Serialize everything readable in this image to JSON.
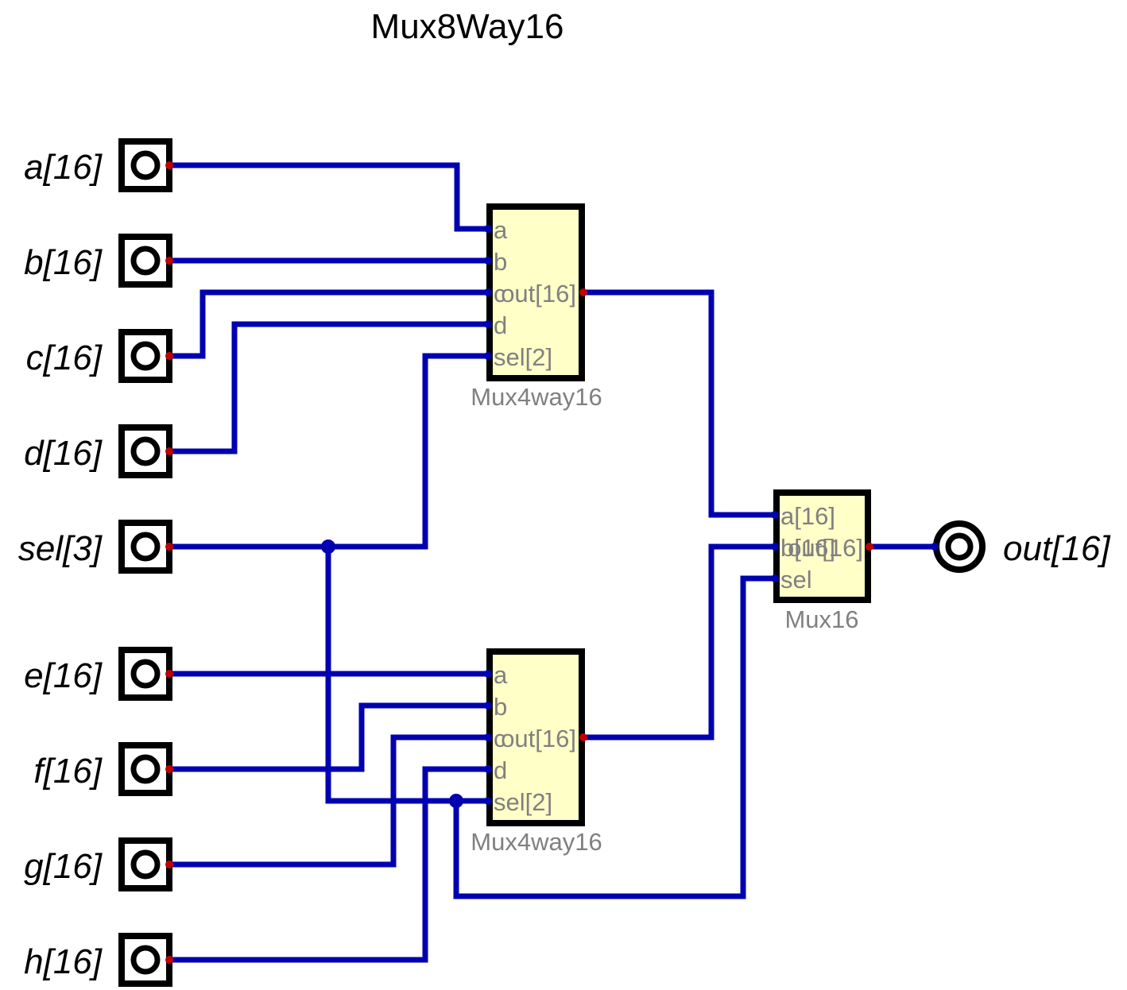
{
  "title": "Mux8Way16",
  "inputs": [
    {
      "label": "a[16]"
    },
    {
      "label": "b[16]"
    },
    {
      "label": "c[16]"
    },
    {
      "label": "d[16]"
    },
    {
      "label": "sel[3]"
    },
    {
      "label": "e[16]"
    },
    {
      "label": "f[16]"
    },
    {
      "label": "g[16]"
    },
    {
      "label": "h[16]"
    }
  ],
  "output": {
    "label": "out[16]"
  },
  "chips": [
    {
      "name": "Mux4way16",
      "ports": [
        "a",
        "b",
        "c",
        "d",
        "sel[2]"
      ],
      "out": "out[16]"
    },
    {
      "name": "Mux4way16",
      "ports": [
        "a",
        "b",
        "c",
        "d",
        "sel[2]"
      ],
      "out": "out[16]"
    },
    {
      "name": "Mux16",
      "ports": [
        "a[16]",
        "b[16]",
        "sel"
      ],
      "out": "out[16]"
    }
  ],
  "colors": {
    "wire": "#0000b0",
    "chip_fill": "#ffffc8",
    "port_dot": "#c00000",
    "label_gray": "#808080"
  }
}
